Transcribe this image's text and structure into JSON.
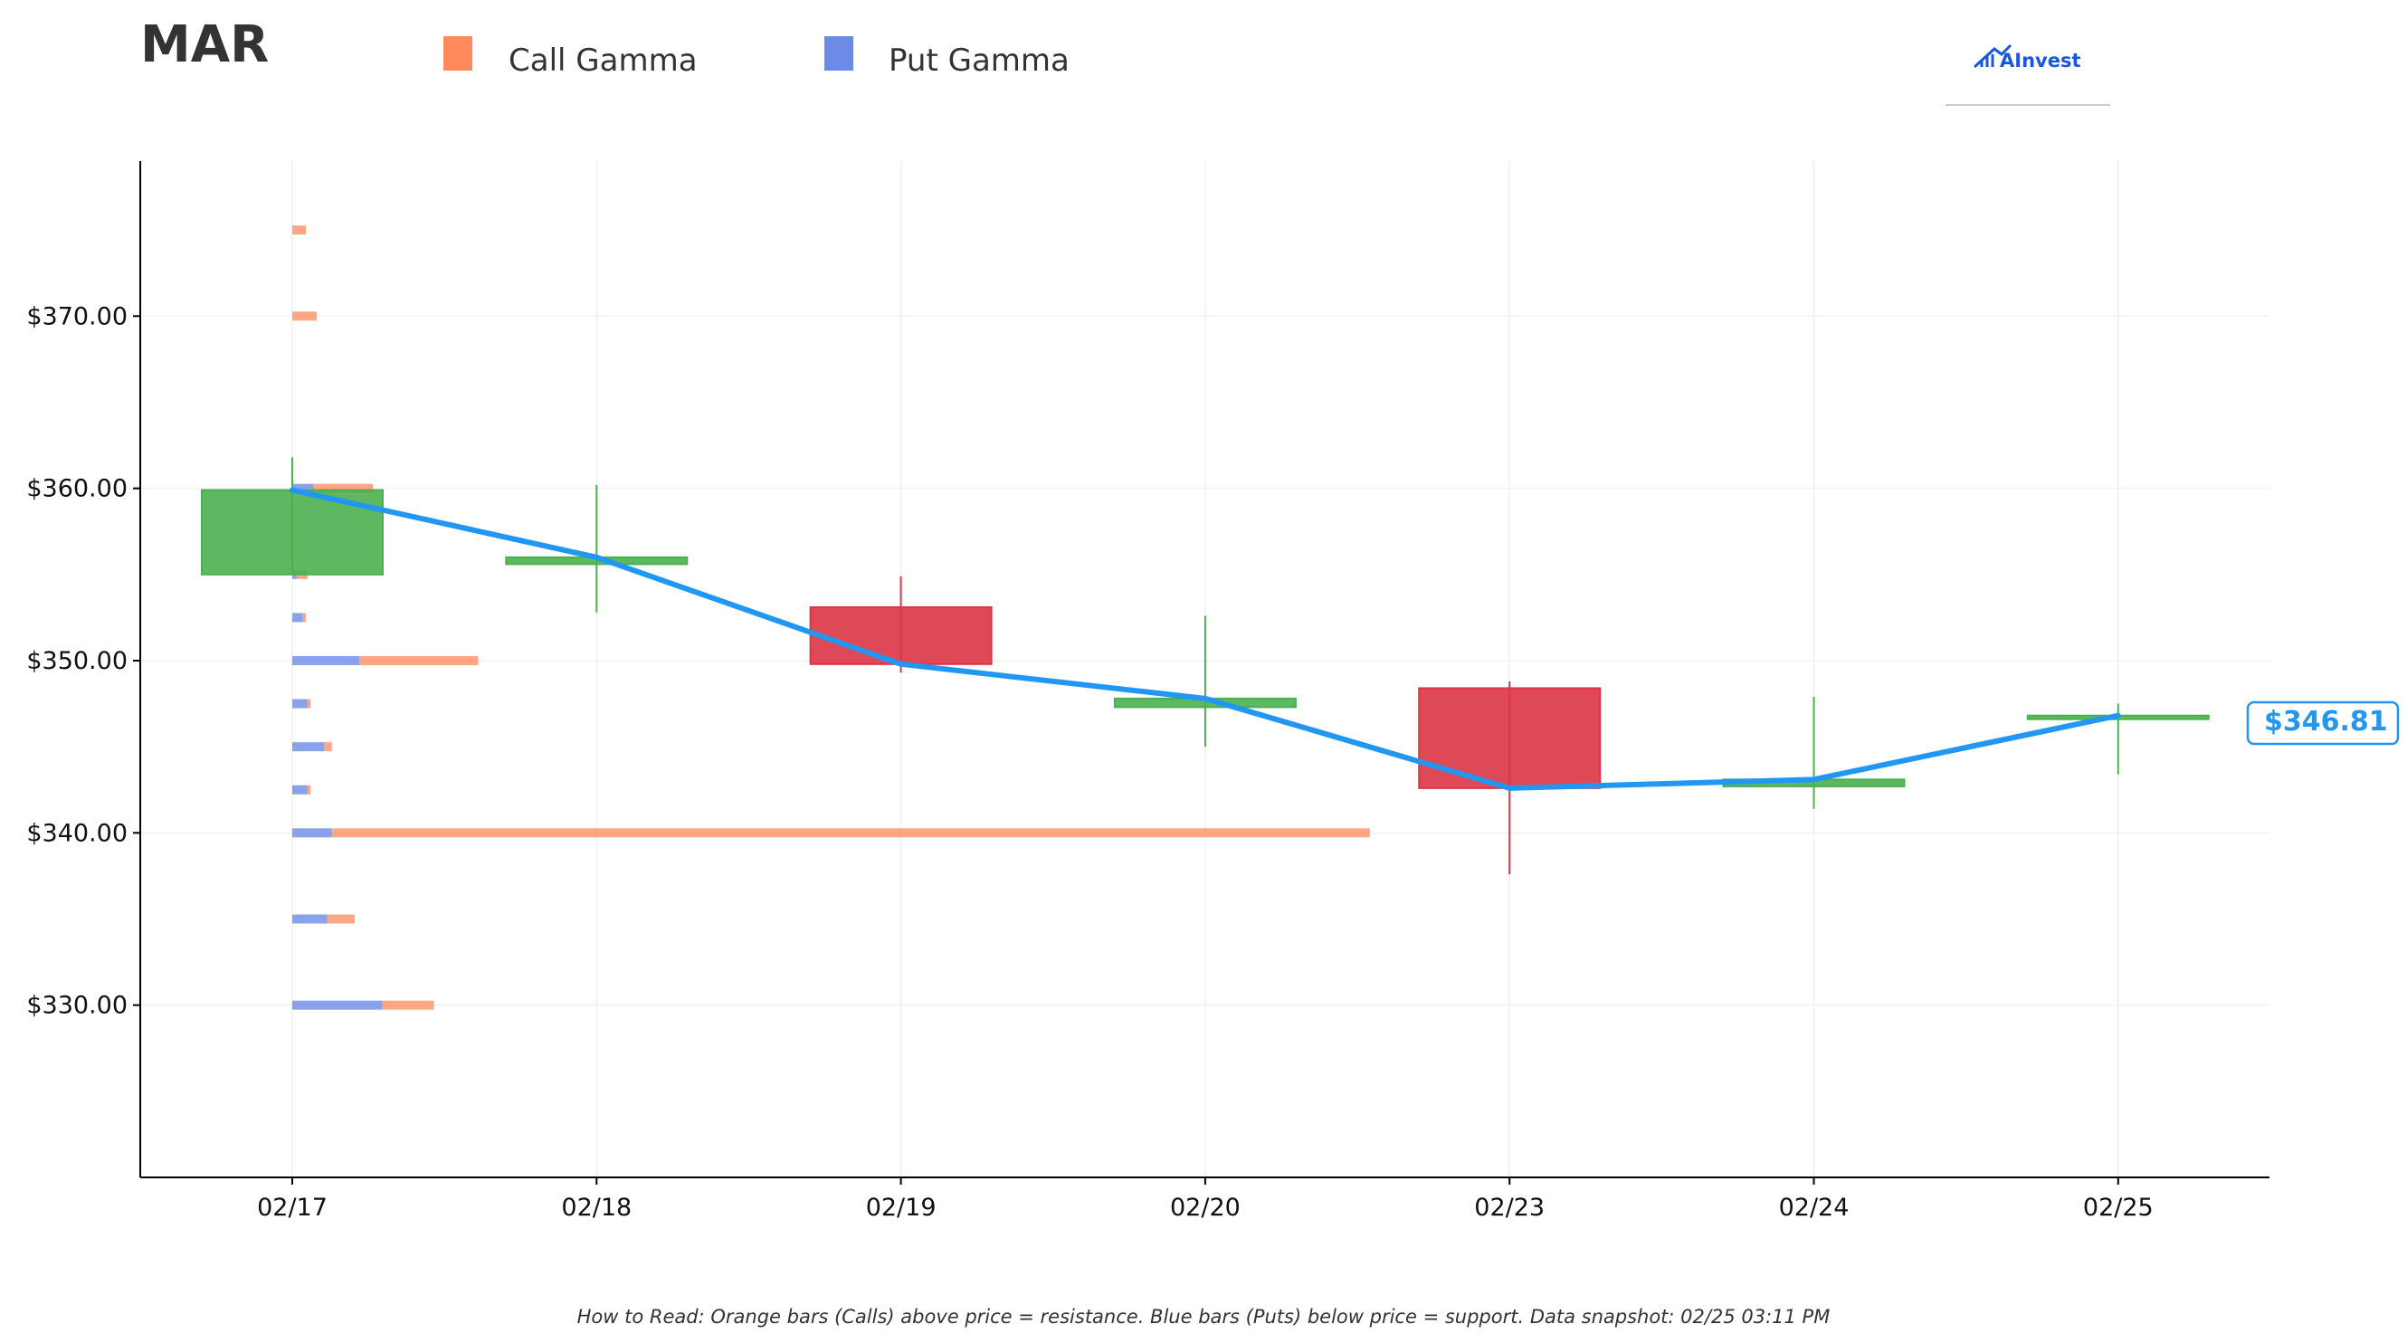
{
  "header": {
    "ticker": "MAR",
    "logo_text": "AInvest"
  },
  "legend": {
    "call_label": "Call Gamma",
    "put_label": "Put Gamma"
  },
  "footer": {
    "note": "How to Read: Orange bars (Calls) above price = resistance. Blue bars (Puts) below price = support. Data snapshot: 02/25 03:11 PM"
  },
  "colors": {
    "call": "#ff8a5c",
    "put": "#6b8be6",
    "up": "#4caf50",
    "down": "#dc3545",
    "price_line": "#2196f3",
    "axis": "#000000",
    "grid": "#f0f0f0"
  },
  "chart_data": {
    "type": "candlestick",
    "ylim": [
      320,
      379
    ],
    "y_ticks": [
      330,
      340,
      350,
      360,
      370
    ],
    "y_tick_labels": [
      "$330.00",
      "$340.00",
      "$350.00",
      "$360.00",
      "$370.00"
    ],
    "categories": [
      "02/17",
      "02/18",
      "02/19",
      "02/20",
      "02/23",
      "02/24",
      "02/25"
    ],
    "grid": true,
    "legend_position": "top",
    "candles": [
      {
        "date": "02/17",
        "open": 355.0,
        "high": 361.8,
        "low": 355.0,
        "close": 359.9
      },
      {
        "date": "02/18",
        "open": 355.6,
        "high": 360.2,
        "low": 352.8,
        "close": 356.0
      },
      {
        "date": "02/19",
        "open": 353.1,
        "high": 354.9,
        "low": 349.3,
        "close": 349.8
      },
      {
        "date": "02/20",
        "open": 347.3,
        "high": 352.6,
        "low": 345.0,
        "close": 347.8
      },
      {
        "date": "02/23",
        "open": 348.4,
        "high": 348.8,
        "low": 337.6,
        "close": 342.6
      },
      {
        "date": "02/24",
        "open": 342.7,
        "high": 347.9,
        "low": 341.4,
        "close": 343.1
      },
      {
        "date": "02/25",
        "open": 346.6,
        "high": 347.5,
        "low": 343.4,
        "close": 346.81
      }
    ],
    "price_line": {
      "name": "Close",
      "values": [
        359.9,
        356.0,
        349.8,
        347.8,
        342.6,
        343.1,
        346.81
      ]
    },
    "last_price_label": "$346.81",
    "gamma_bars": [
      {
        "strike": 375.0,
        "put": 0.0,
        "call": 0.09
      },
      {
        "strike": 370.0,
        "put": 0.0,
        "call": 0.16
      },
      {
        "strike": 360.0,
        "put": 0.14,
        "call": 0.39
      },
      {
        "strike": 355.0,
        "put": 0.03,
        "call": 0.07
      },
      {
        "strike": 352.5,
        "put": 0.07,
        "call": 0.02
      },
      {
        "strike": 350.0,
        "put": 0.44,
        "call": 0.78
      },
      {
        "strike": 347.5,
        "put": 0.1,
        "call": 0.02
      },
      {
        "strike": 345.0,
        "put": 0.21,
        "call": 0.05
      },
      {
        "strike": 342.5,
        "put": 0.1,
        "call": 0.02
      },
      {
        "strike": 340.0,
        "put": 0.26,
        "call": 6.81
      },
      {
        "strike": 335.0,
        "put": 0.23,
        "call": 0.18
      },
      {
        "strike": 330.0,
        "put": 0.59,
        "call": 0.34
      }
    ],
    "gamma_scale_max": 7.0
  }
}
